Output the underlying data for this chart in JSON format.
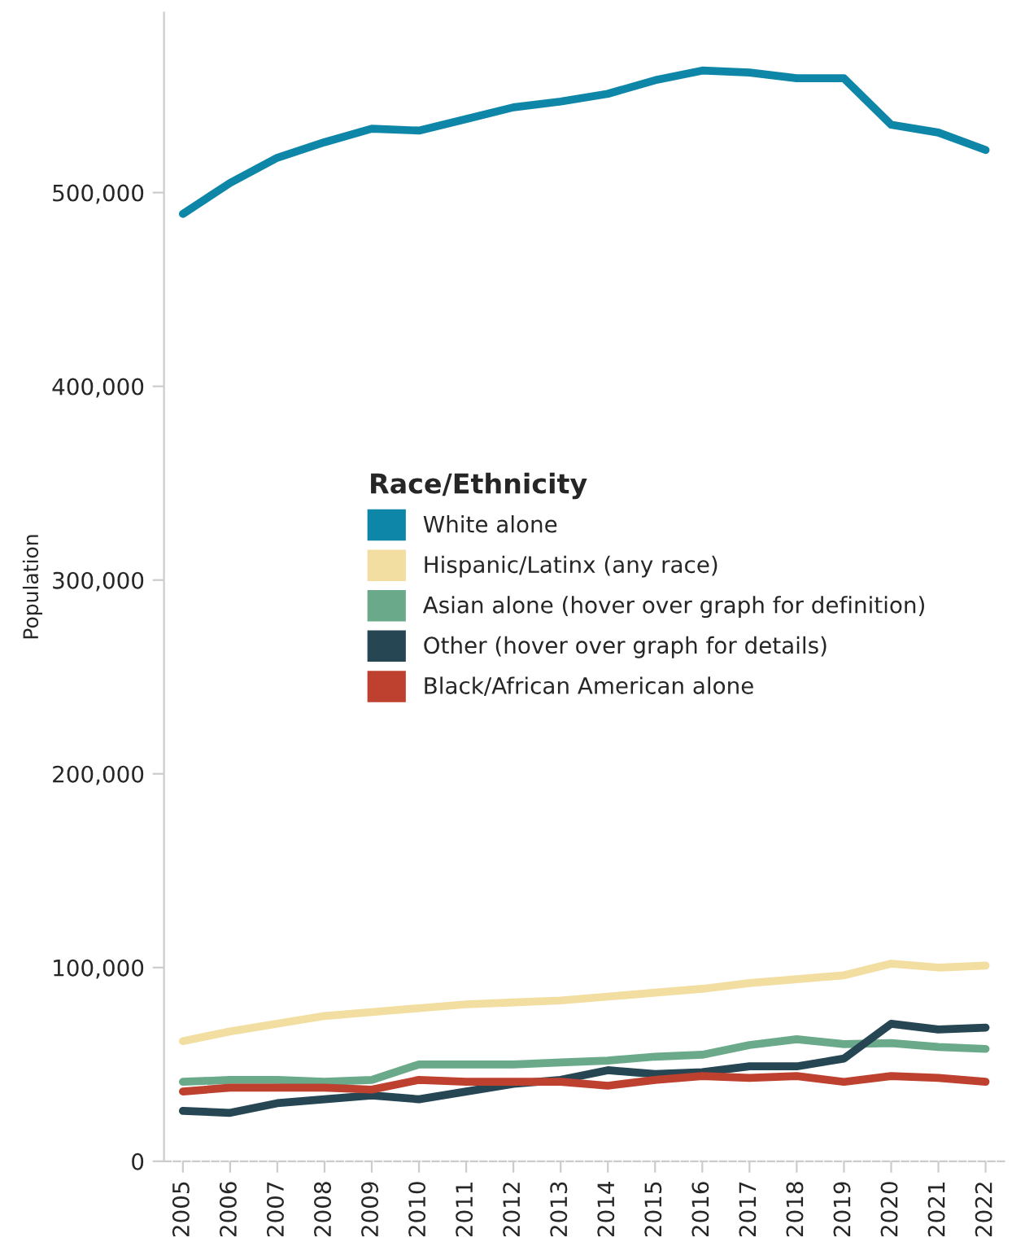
{
  "chart_data": {
    "type": "line",
    "ylabel": "Population",
    "legend_title": "Race/Ethnicity",
    "legend": "center",
    "grid": false,
    "categories": [
      "2005",
      "2006",
      "2007",
      "2008",
      "2009",
      "2010",
      "2011",
      "2012",
      "2013",
      "2014",
      "2015",
      "2016",
      "2017",
      "2018",
      "2019",
      "2020",
      "2021",
      "2022"
    ],
    "ylim": [
      0,
      593000
    ],
    "yticks": [
      {
        "value": 0,
        "label": "0"
      },
      {
        "value": 100000,
        "label": "100,000"
      },
      {
        "value": 200000,
        "label": "200,000"
      },
      {
        "value": 300000,
        "label": "300,000"
      },
      {
        "value": 400000,
        "label": "400,000"
      },
      {
        "value": 500000,
        "label": "500,000"
      }
    ],
    "series": [
      {
        "name": "White alone",
        "color": "#0e86a8",
        "values": [
          489000,
          505000,
          518000,
          526000,
          533000,
          532000,
          538000,
          544000,
          547000,
          551000,
          558000,
          563000,
          562000,
          559000,
          559000,
          535000,
          531000,
          522000
        ]
      },
      {
        "name": "Hispanic/Latinx (any race)",
        "color": "#f2dea0",
        "values": [
          62000,
          67000,
          71000,
          75000,
          77000,
          79000,
          81000,
          82000,
          83000,
          85000,
          87000,
          89000,
          92000,
          94000,
          96000,
          102000,
          100000,
          101000
        ]
      },
      {
        "name": "Asian alone (hover over graph for definition)",
        "color": "#6aaa8a",
        "values": [
          41000,
          42000,
          42000,
          41000,
          42000,
          50000,
          50000,
          50000,
          51000,
          52000,
          54000,
          55000,
          60000,
          63000,
          60500,
          61000,
          59000,
          58000
        ]
      },
      {
        "name": "Other (hover over graph for details)",
        "color": "#264653",
        "values": [
          26000,
          25000,
          30000,
          32000,
          34000,
          32000,
          36000,
          40000,
          42000,
          47000,
          45000,
          46000,
          49000,
          49000,
          53000,
          71000,
          68000,
          69000
        ]
      },
      {
        "name": "Black/African American alone",
        "color": "#be4130",
        "values": [
          36000,
          38000,
          38000,
          38000,
          37000,
          42000,
          41000,
          41000,
          41000,
          39000,
          42000,
          44000,
          43000,
          44000,
          41000,
          44000,
          43000,
          41000
        ]
      }
    ]
  }
}
